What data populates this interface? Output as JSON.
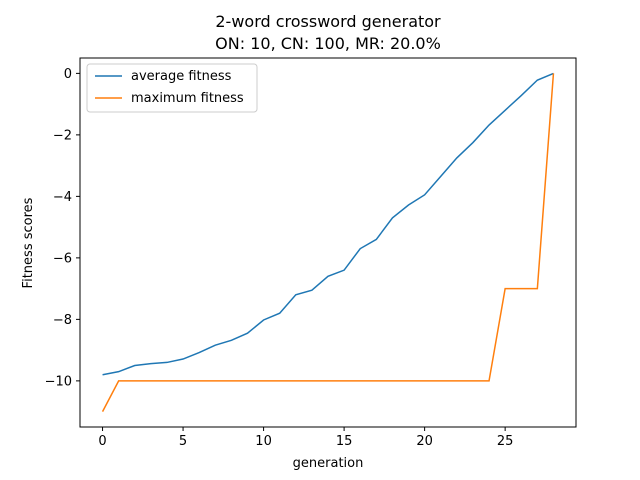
{
  "chart_data": {
    "type": "line",
    "title": "2-word crossword generator",
    "subtitle": "ON: 10, CN: 100, MR: 20.0%",
    "xlabel": "generation",
    "ylabel": "Fitness scores",
    "xlim": [
      -1.4,
      29.4
    ],
    "ylim": [
      -11.5,
      0.5
    ],
    "xticks": [
      0,
      5,
      10,
      15,
      20,
      25
    ],
    "yticks": [
      0,
      -2,
      -4,
      -6,
      -8,
      -10
    ],
    "grid": false,
    "legend_position": "top-left",
    "series": [
      {
        "name": "average fitness",
        "color": "#1f77b4",
        "x": [
          0,
          1,
          2,
          3,
          4,
          5,
          6,
          7,
          8,
          9,
          10,
          11,
          12,
          13,
          14,
          15,
          16,
          17,
          18,
          19,
          20,
          21,
          22,
          23,
          24,
          25,
          26,
          27,
          28
        ],
        "values": [
          -9.8,
          -9.7,
          -9.5,
          -9.44,
          -9.4,
          -9.29,
          -9.08,
          -8.84,
          -8.68,
          -8.45,
          -8.02,
          -7.8,
          -7.2,
          -7.05,
          -6.6,
          -6.4,
          -5.7,
          -5.4,
          -4.7,
          -4.28,
          -3.95,
          -3.35,
          -2.75,
          -2.25,
          -1.68,
          -1.2,
          -0.72,
          -0.22,
          0.0
        ]
      },
      {
        "name": "maximum fitness",
        "color": "#ff7f0e",
        "x": [
          0,
          1,
          2,
          3,
          4,
          5,
          6,
          7,
          8,
          9,
          10,
          11,
          12,
          13,
          14,
          15,
          16,
          17,
          18,
          19,
          20,
          21,
          22,
          23,
          24,
          25,
          26,
          27,
          28
        ],
        "values": [
          -11,
          -10,
          -10,
          -10,
          -10,
          -10,
          -10,
          -10,
          -10,
          -10,
          -10,
          -10,
          -10,
          -10,
          -10,
          -10,
          -10,
          -10,
          -10,
          -10,
          -10,
          -10,
          -10,
          -10,
          -10,
          -7,
          -7,
          -7,
          0
        ]
      }
    ]
  }
}
